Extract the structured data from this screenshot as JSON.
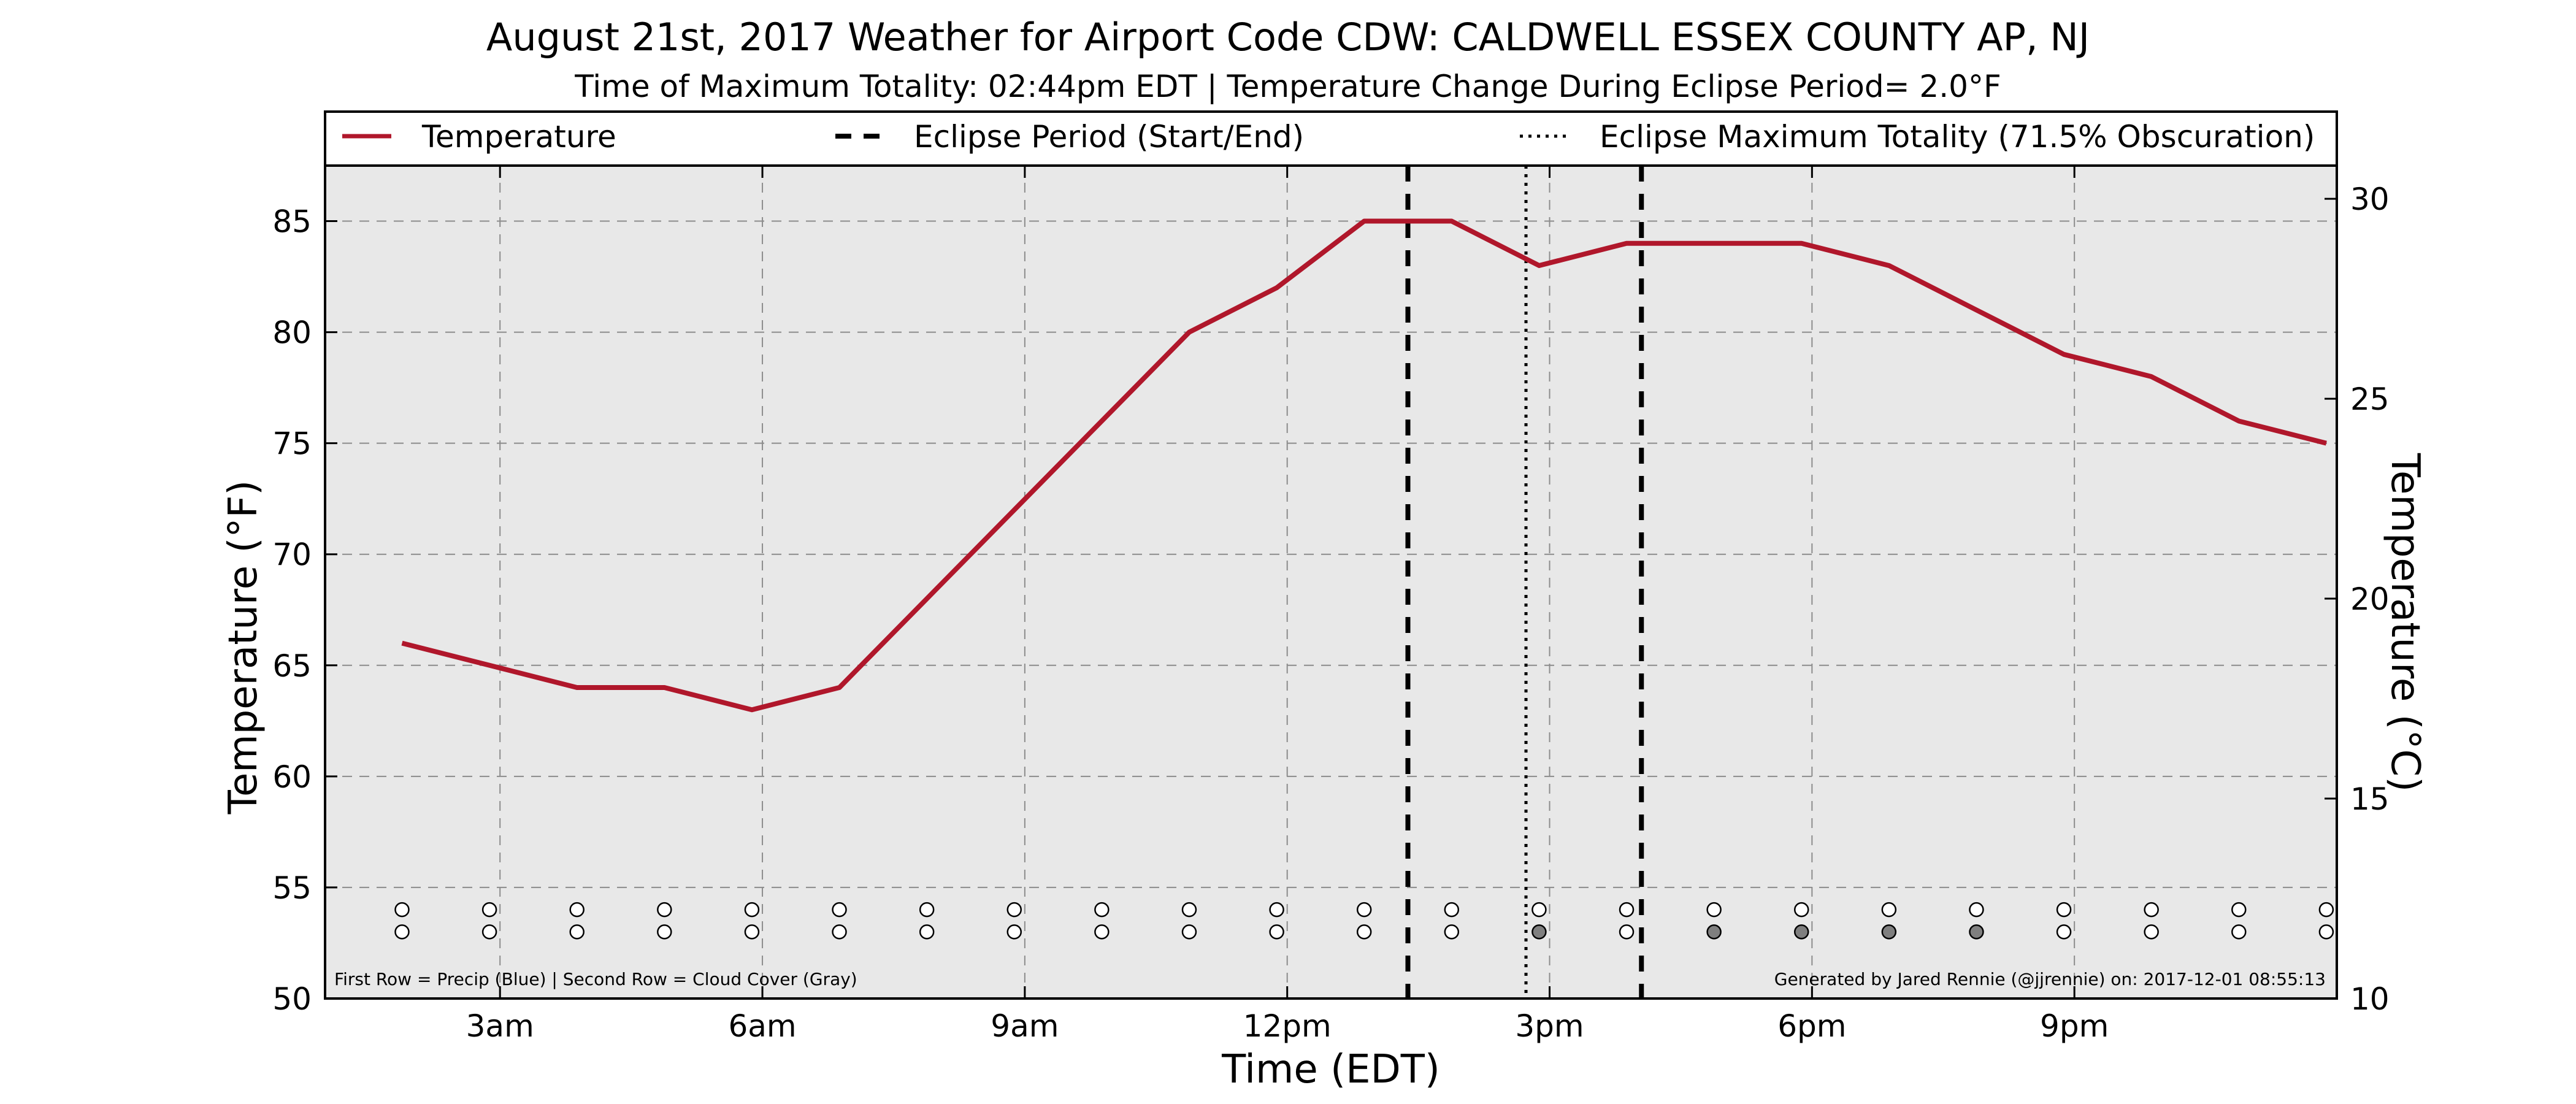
{
  "chart_data": {
    "type": "line",
    "title": "August 21st, 2017 Weather for Airport Code CDW: CALDWELL ESSEX COUNTY AP, NJ",
    "subtitle": "Time of Maximum Totality: 02:44pm EDT | Temperature Change During Eclipse Period= 2.0°F",
    "xlabel": "Time (EDT)",
    "ylabel": "Temperature (°F)",
    "y2label": "Temperature (°C)",
    "xlim": [
      1.0,
      24.0
    ],
    "ylim": [
      50,
      87.5
    ],
    "y2lim": [
      10,
      30.83
    ],
    "x_ticks": [
      {
        "x": 3,
        "label": "3am"
      },
      {
        "x": 6,
        "label": "6am"
      },
      {
        "x": 9,
        "label": "9am"
      },
      {
        "x": 12,
        "label": "12pm"
      },
      {
        "x": 15,
        "label": "3pm"
      },
      {
        "x": 18,
        "label": "6pm"
      },
      {
        "x": 21,
        "label": "9pm"
      }
    ],
    "y_ticks": [
      50,
      55,
      60,
      65,
      70,
      75,
      80,
      85
    ],
    "y2_ticks": [
      10,
      15,
      20,
      25,
      30
    ],
    "grid": true,
    "background": "#e8e8e8",
    "legend_position": "top",
    "series": [
      {
        "name": "Temperature",
        "color": "#b0172b",
        "x": [
          1.88,
          2.88,
          3.88,
          4.88,
          5.88,
          6.88,
          7.88,
          8.88,
          9.88,
          10.88,
          11.88,
          12.88,
          13.88,
          14.88,
          15.88,
          16.88,
          17.88,
          18.88,
          19.88,
          20.88,
          21.88,
          22.88,
          23.88
        ],
        "y": [
          66,
          65,
          64,
          64,
          63,
          64,
          68,
          72,
          76,
          80,
          82,
          85,
          85,
          83,
          84,
          84,
          84,
          83,
          81,
          79,
          78,
          76,
          75
        ]
      }
    ],
    "vertical_lines": [
      {
        "name": "Eclipse Period (Start/End)",
        "style": "dashed",
        "x": [
          13.38,
          16.05
        ]
      },
      {
        "name": "Eclipse Maximum Totality (71.5% Obscuration)",
        "style": "dotted",
        "x": [
          14.73
        ]
      }
    ],
    "markers": {
      "precip_y": 54,
      "cloud_y": 53,
      "x": [
        1.88,
        2.88,
        3.88,
        4.88,
        5.88,
        6.88,
        7.88,
        8.88,
        9.88,
        10.88,
        11.88,
        12.88,
        13.88,
        14.88,
        15.88,
        16.88,
        17.88,
        18.88,
        19.88,
        20.88,
        21.88,
        22.88,
        23.88
      ],
      "precip_fill": [
        "white",
        "white",
        "white",
        "white",
        "white",
        "white",
        "white",
        "white",
        "white",
        "white",
        "white",
        "white",
        "white",
        "white",
        "white",
        "white",
        "white",
        "white",
        "white",
        "white",
        "white",
        "white",
        "white"
      ],
      "cloud_fill": [
        "white",
        "white",
        "white",
        "white",
        "white",
        "white",
        "white",
        "white",
        "white",
        "white",
        "white",
        "white",
        "white",
        "gray",
        "white",
        "gray",
        "gray",
        "gray",
        "gray",
        "white",
        "white",
        "white",
        "white"
      ]
    },
    "footnote_left": "First Row = Precip (Blue) | Second Row = Cloud Cover (Gray)",
    "footnote_right": "Generated by Jared Rennie (@jjrennie) on: 2017-12-01 08:55:13"
  }
}
